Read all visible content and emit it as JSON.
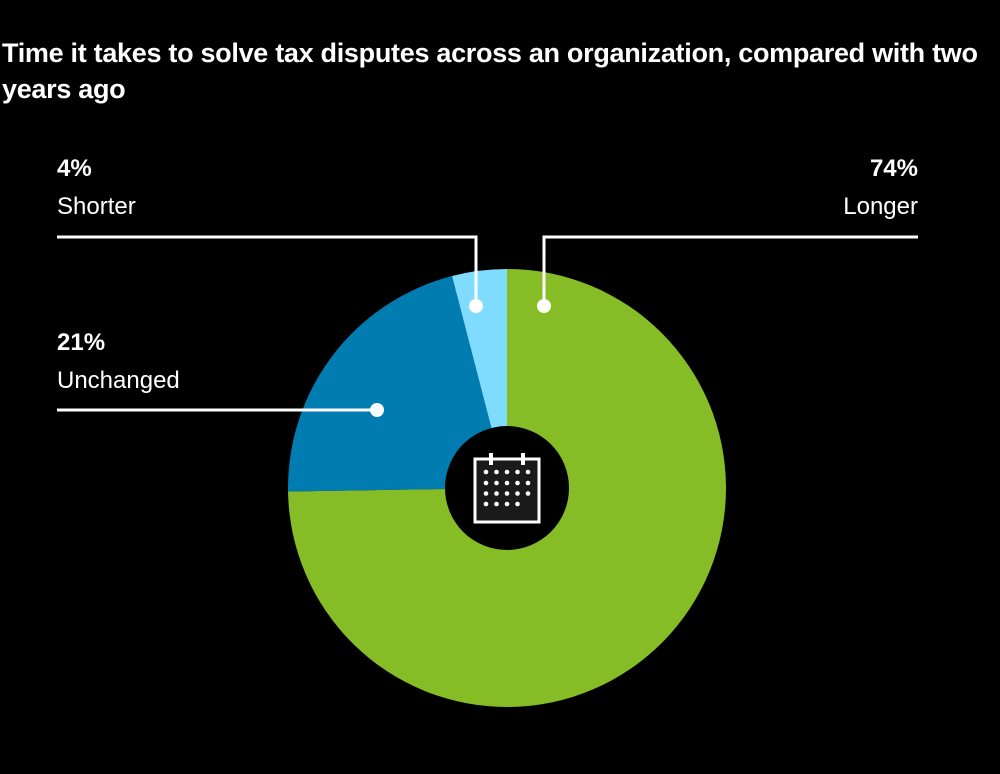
{
  "chart_data": {
    "type": "pie",
    "title": "Time it takes to solve tax disputes across an organization, compared with two years ago",
    "slices": [
      {
        "label": "Longer",
        "value": 74,
        "value_label": "74%",
        "color": "#86BC25"
      },
      {
        "label": "Unchanged",
        "value": 21,
        "value_label": "21%",
        "color": "#007CB0"
      },
      {
        "label": "Shorter",
        "value": 4,
        "value_label": "4%",
        "color": "#7FDCFF"
      }
    ],
    "center_icon": "calendar-icon",
    "background": "#000000"
  }
}
